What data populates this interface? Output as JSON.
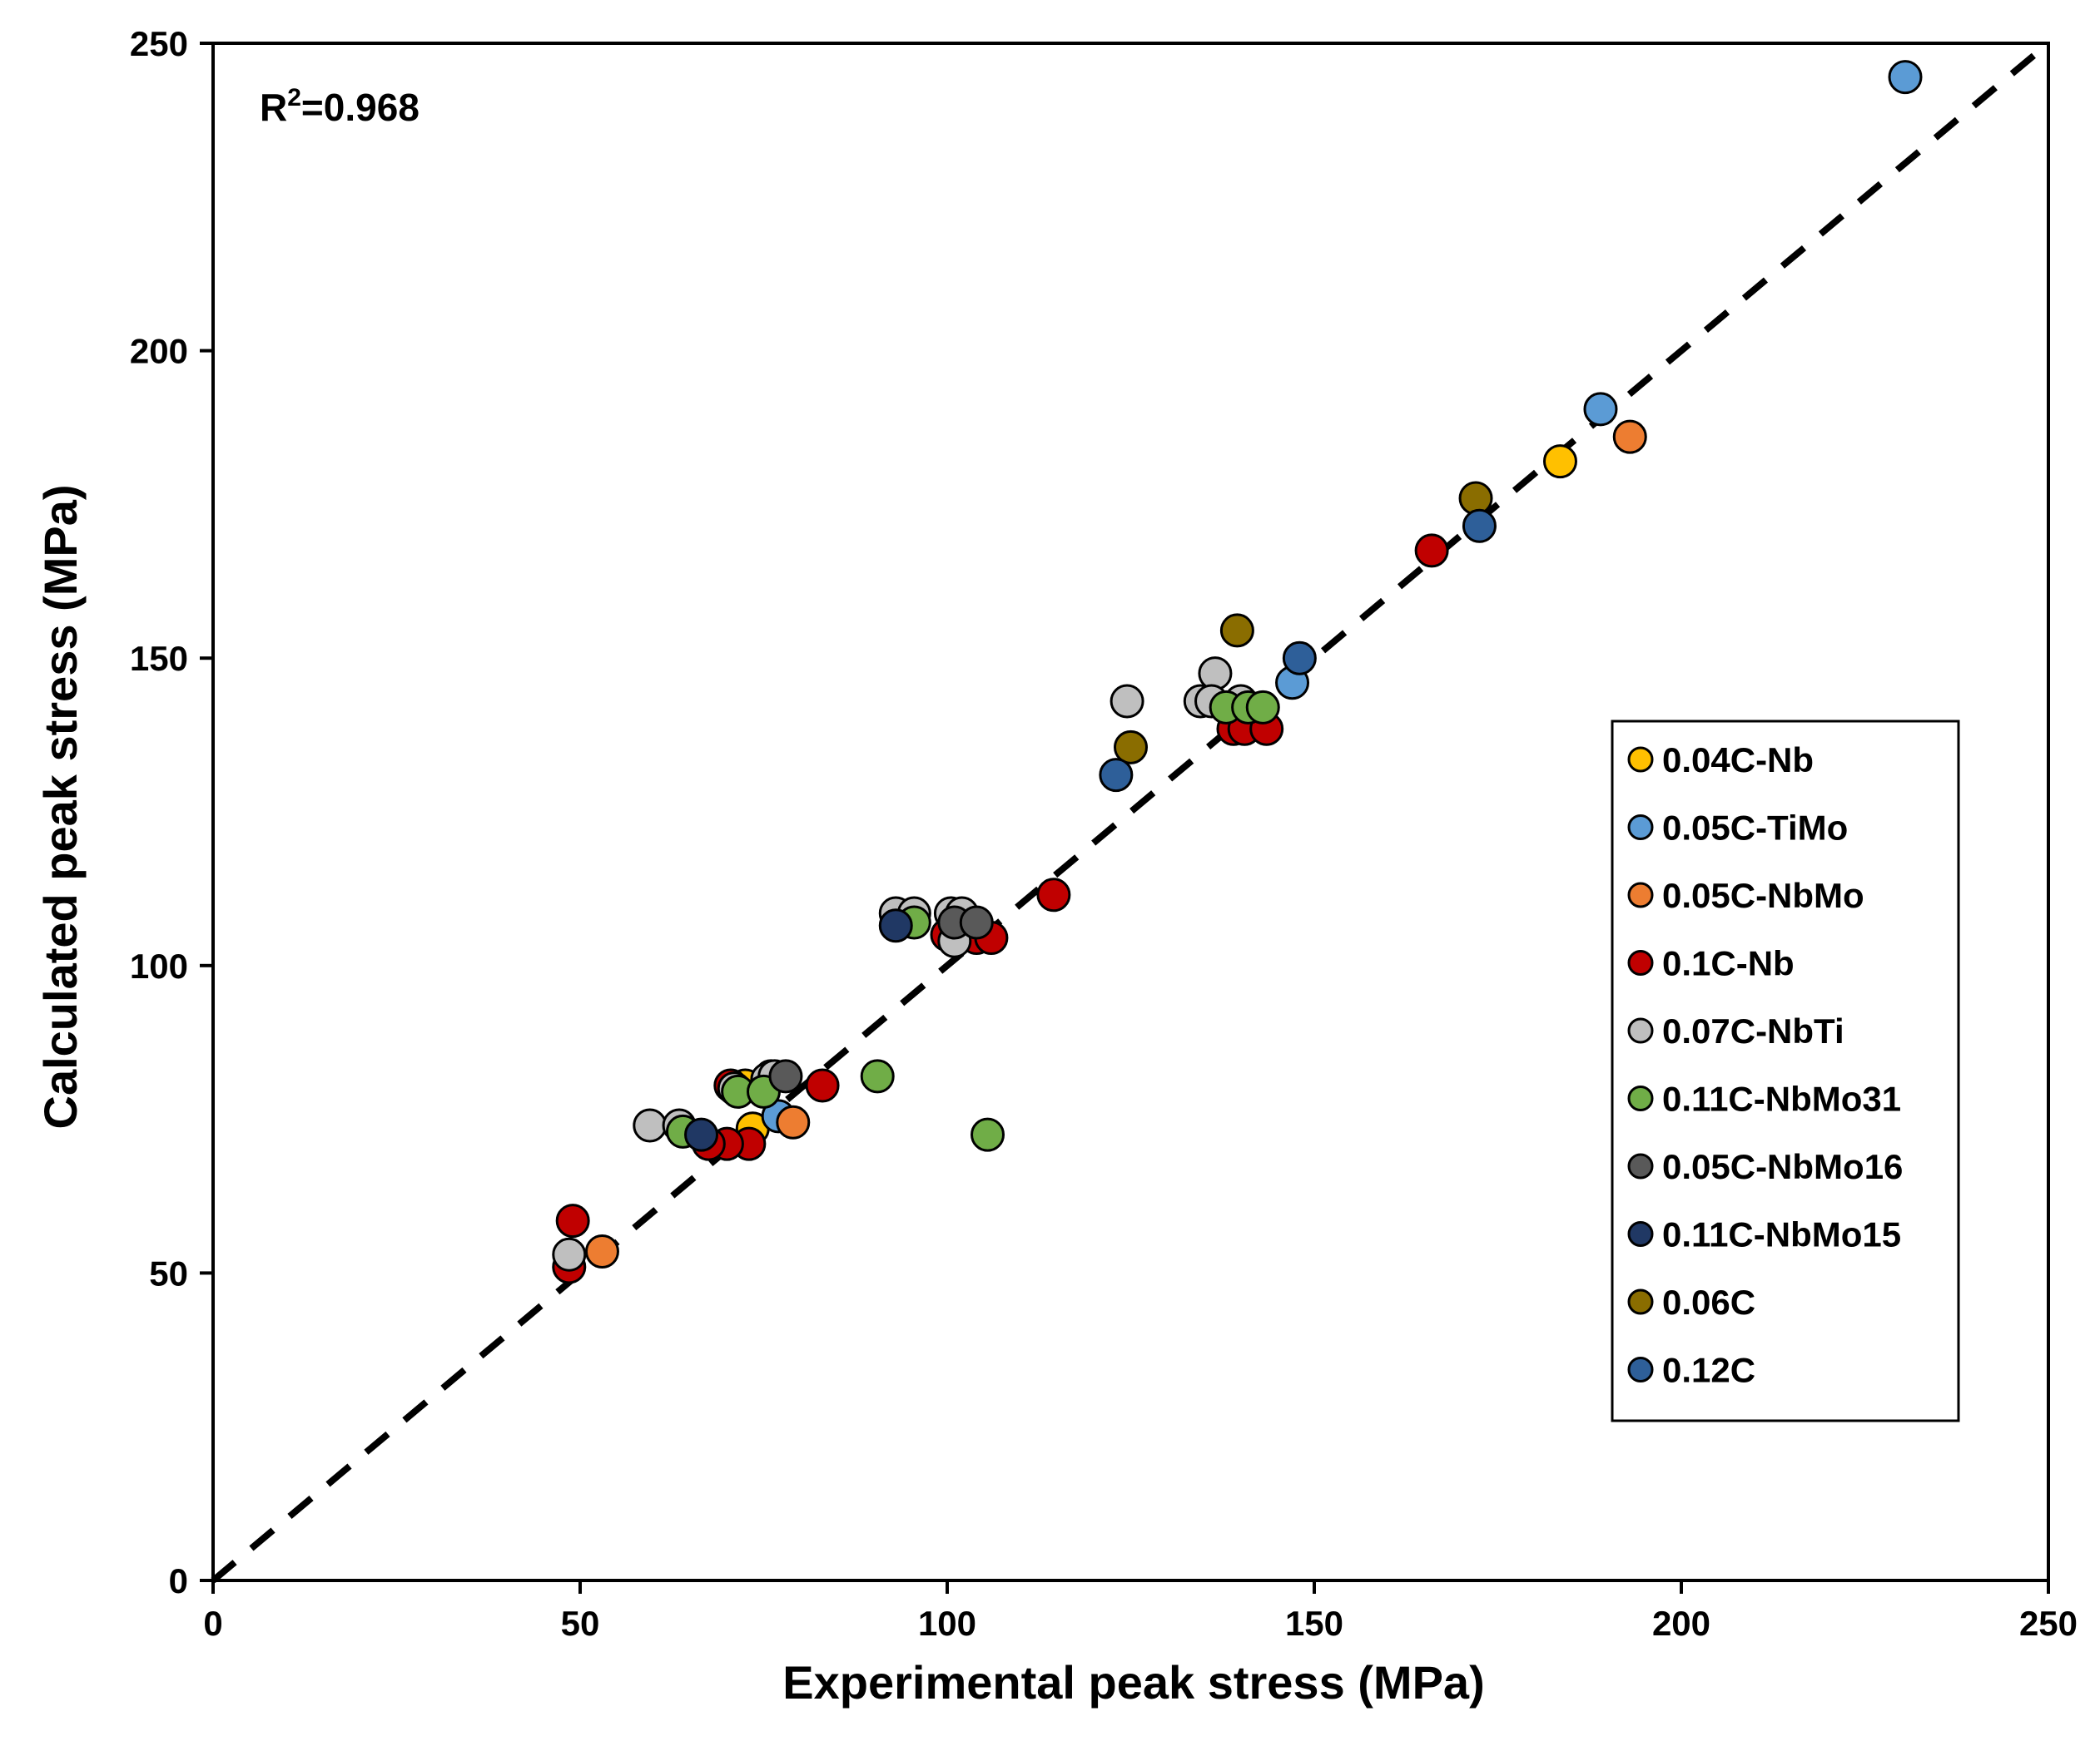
{
  "chart_data": {
    "type": "scatter",
    "title": "",
    "xlabel": "Experimental peak stress (MPa)",
    "ylabel": "Calculated peak stress (MPa)",
    "xlim": [
      0,
      250
    ],
    "ylim": [
      0,
      250
    ],
    "xticks": [
      0,
      50,
      100,
      150,
      200,
      250
    ],
    "yticks": [
      0,
      50,
      100,
      150,
      200,
      250
    ],
    "xtick_labels": [
      "0",
      "50",
      "100",
      "150",
      "200",
      "250"
    ],
    "ytick_labels": [
      "0",
      "50",
      "100",
      "150",
      "200",
      "250"
    ],
    "grid": false,
    "legend_position": "right-middle",
    "annotation": {
      "prefix": "R",
      "superscript": "2",
      "rest": "=0.968"
    },
    "reference_line": {
      "style": "dashed",
      "color": "#000000",
      "from": [
        0,
        0
      ],
      "to": [
        250,
        250
      ]
    },
    "series": [
      {
        "name": "0.04C-Nb",
        "color": "#FFC000",
        "points": [
          [
            183.5,
            182
          ],
          [
            72.5,
            80.5
          ],
          [
            73.5,
            73.5
          ]
        ]
      },
      {
        "name": "0.05C-TiMo",
        "color": "#5B9BD5",
        "points": [
          [
            230.5,
            244.5
          ],
          [
            189,
            190.5
          ],
          [
            147,
            146
          ],
          [
            77,
            75.5
          ]
        ]
      },
      {
        "name": "0.05C-NbMo",
        "color": "#ED7D31",
        "points": [
          [
            193,
            186
          ],
          [
            79,
            74.5
          ],
          [
            53,
            53.5
          ],
          [
            76,
            82
          ]
        ]
      },
      {
        "name": "0.1C-Nb",
        "color": "#C00000",
        "points": [
          [
            166,
            167.5
          ],
          [
            114.5,
            111.5
          ],
          [
            139,
            138.5
          ],
          [
            140.5,
            138.5
          ],
          [
            143.5,
            138.5
          ],
          [
            100,
            105
          ],
          [
            104,
            104.5
          ],
          [
            106,
            104.5
          ],
          [
            83,
            80.5
          ],
          [
            70.5,
            80.5
          ],
          [
            73,
            71
          ],
          [
            70,
            71
          ],
          [
            67.5,
            71
          ],
          [
            49,
            58.5
          ],
          [
            48.5,
            51
          ]
        ]
      },
      {
        "name": "0.07C-NbTi",
        "color": "#BFBFBF",
        "points": [
          [
            124.5,
            143
          ],
          [
            136.5,
            147.5
          ],
          [
            134.5,
            143
          ],
          [
            136,
            143
          ],
          [
            140,
            143
          ],
          [
            93,
            108.5
          ],
          [
            95.5,
            108.5
          ],
          [
            100.5,
            108.5
          ],
          [
            102,
            108.5
          ],
          [
            101,
            104
          ],
          [
            59.5,
            74
          ],
          [
            63.5,
            74
          ],
          [
            71,
            80
          ],
          [
            75.5,
            81.5
          ],
          [
            76.5,
            82
          ],
          [
            48.5,
            53
          ]
        ]
      },
      {
        "name": "0.11C-NbMo31",
        "color": "#70AD47",
        "points": [
          [
            138,
            142
          ],
          [
            141,
            142
          ],
          [
            143,
            142
          ],
          [
            95.5,
            107
          ],
          [
            90.5,
            82
          ],
          [
            105.5,
            72.5
          ],
          [
            71.5,
            79.5
          ],
          [
            75,
            79.5
          ],
          [
            64,
            73
          ]
        ]
      },
      {
        "name": "0.05C-NbMo16",
        "color": "#595959",
        "points": [
          [
            101,
            107
          ],
          [
            104,
            107
          ],
          [
            78,
            82
          ]
        ]
      },
      {
        "name": "0.11C-NbMo15",
        "color": "#203864",
        "points": [
          [
            93,
            106.5
          ],
          [
            66.5,
            72.5
          ]
        ]
      },
      {
        "name": "0.06C",
        "color": "#8A6D00",
        "points": [
          [
            172,
            176
          ],
          [
            139.5,
            154.5
          ],
          [
            125,
            135.5
          ]
        ]
      },
      {
        "name": "0.12C",
        "color": "#2E5F99",
        "points": [
          [
            172.5,
            171.5
          ],
          [
            148,
            150
          ],
          [
            123,
            131
          ]
        ]
      }
    ]
  }
}
